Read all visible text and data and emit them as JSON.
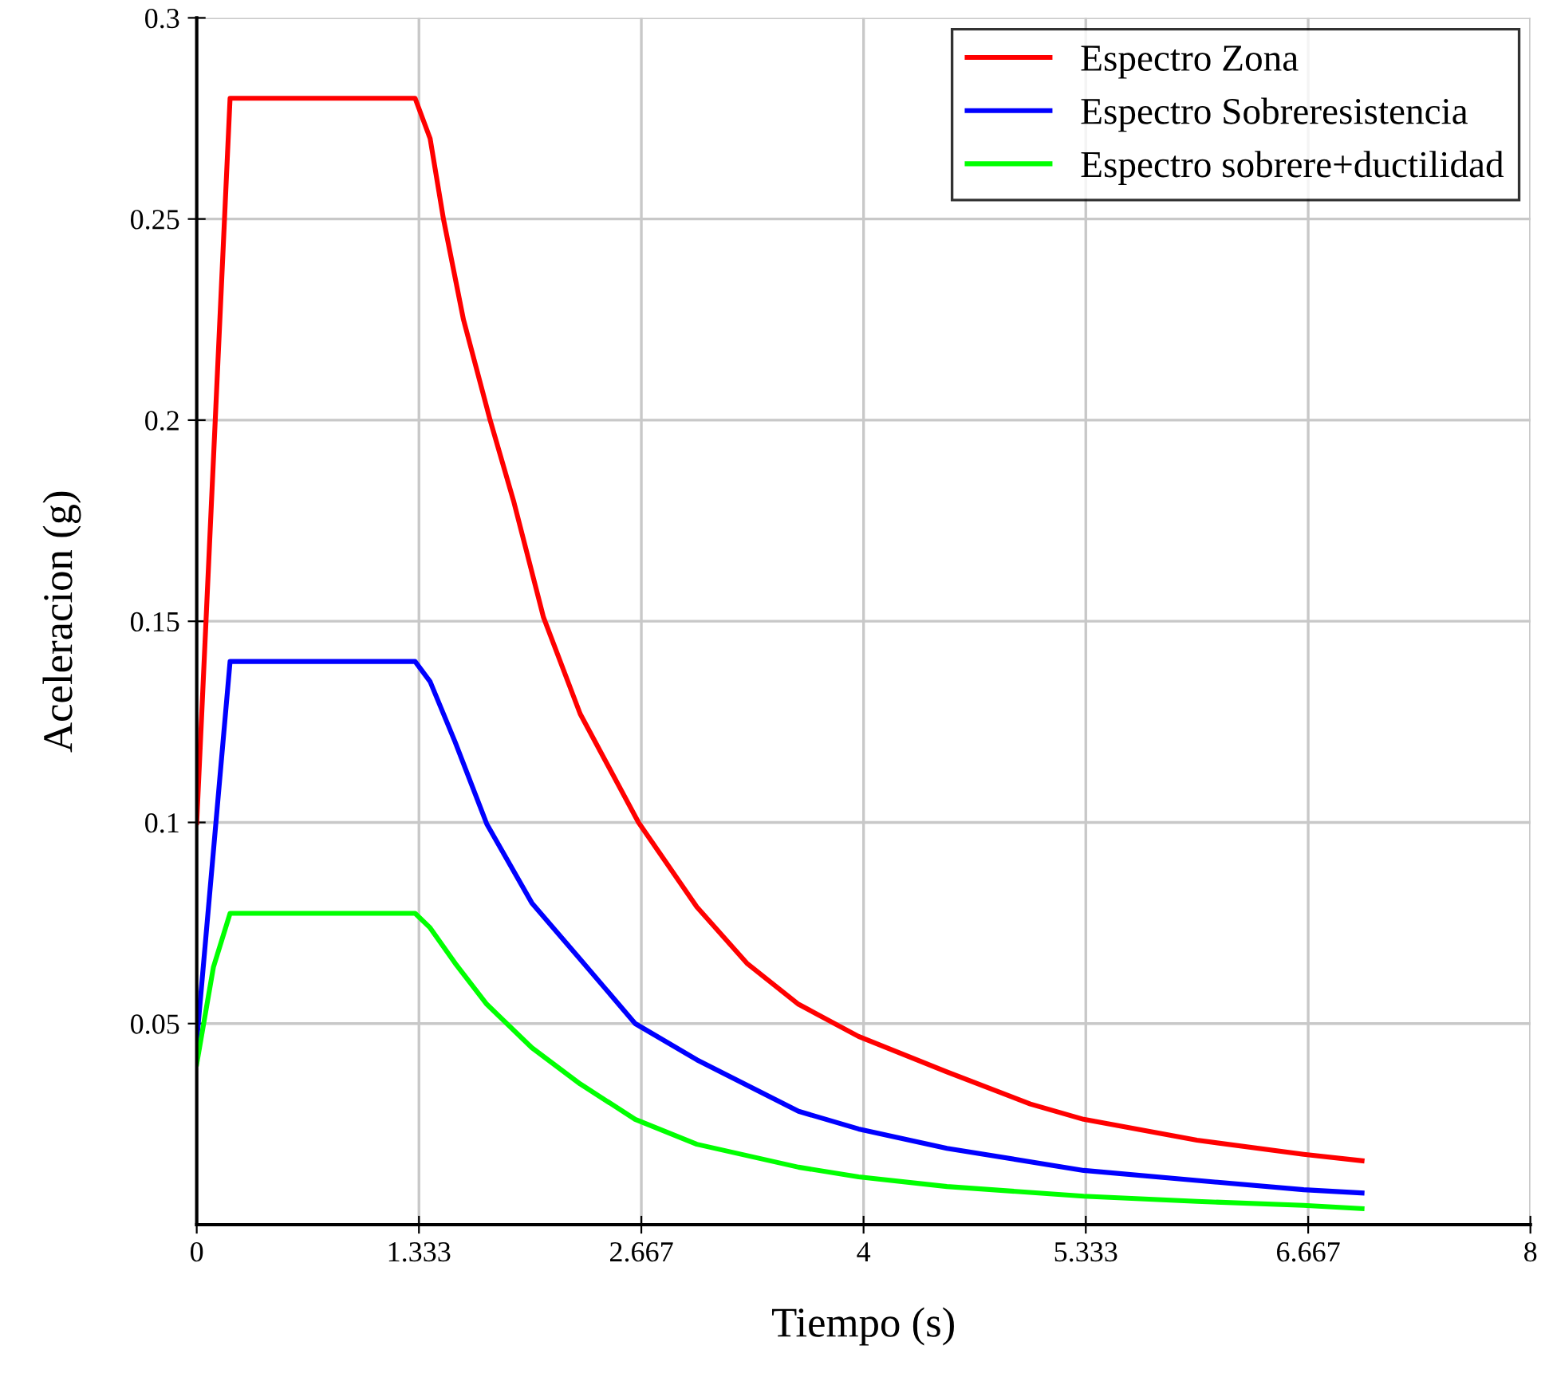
{
  "chart_data": {
    "type": "line",
    "xlabel": "Tiempo (s)",
    "ylabel": "Aceleracion (g)",
    "xlim": [
      0,
      8
    ],
    "xticks": [
      0,
      1.333,
      2.667,
      4,
      5.333,
      6.667,
      8
    ],
    "ylim": [
      0,
      0.3
    ],
    "yticks": [
      0.05,
      0.1,
      0.15,
      0.2,
      0.25,
      0.3
    ],
    "grid": true,
    "legend": "top right",
    "line_style": "solid",
    "marker": "none",
    "series": [
      {
        "name": "Espectro Zona",
        "color": "#ff0000",
        "x": [
          0,
          0.2,
          1.31,
          1.4,
          1.48,
          1.6,
          1.76,
          1.9,
          2.08,
          2.3,
          2.65,
          3.0,
          3.3,
          3.61,
          3.97,
          4.5,
          5.0,
          5.32,
          6.0,
          6.64,
          6.99
        ],
        "values": [
          0.1,
          0.28,
          0.28,
          0.27,
          0.25,
          0.225,
          0.2,
          0.18,
          0.151,
          0.127,
          0.1,
          0.079,
          0.065,
          0.0548,
          0.0468,
          0.038,
          0.03,
          0.0262,
          0.021,
          0.0175,
          0.0159
        ]
      },
      {
        "name": "Espectro Sobreresistencia",
        "color": "#0000ff",
        "x": [
          0,
          0.2,
          1.31,
          1.4,
          1.55,
          1.74,
          2.01,
          2.3,
          2.63,
          3.0,
          3.61,
          3.97,
          4.5,
          5.32,
          6.0,
          6.64,
          6.99
        ],
        "values": [
          0.0456,
          0.14,
          0.14,
          0.135,
          0.12,
          0.0996,
          0.08,
          0.066,
          0.05,
          0.041,
          0.0282,
          0.0238,
          0.019,
          0.0135,
          0.011,
          0.0087,
          0.0079
        ]
      },
      {
        "name": "Espectro sobrere+ductilidad",
        "color": "#00ff00",
        "x": [
          0,
          0.1,
          0.2,
          1.31,
          1.4,
          1.55,
          1.74,
          2.01,
          2.3,
          2.63,
          3.0,
          3.61,
          3.97,
          4.5,
          5.32,
          6.0,
          6.64,
          6.99
        ],
        "values": [
          0.04,
          0.064,
          0.0774,
          0.0774,
          0.0738,
          0.065,
          0.0548,
          0.044,
          0.035,
          0.0262,
          0.02,
          0.0143,
          0.0119,
          0.0095,
          0.0071,
          0.0058,
          0.0048,
          0.004
        ]
      }
    ]
  }
}
